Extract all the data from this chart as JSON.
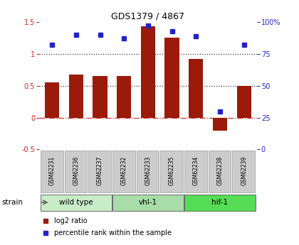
{
  "title": "GDS1379 / 4867",
  "samples": [
    "GSM62231",
    "GSM62236",
    "GSM62237",
    "GSM62232",
    "GSM62233",
    "GSM62235",
    "GSM62234",
    "GSM62238",
    "GSM62239"
  ],
  "log2_ratio": [
    0.55,
    0.68,
    0.65,
    0.65,
    1.43,
    1.25,
    0.92,
    -0.2,
    0.5
  ],
  "percentile_rank": [
    82,
    90,
    90,
    87,
    97,
    93,
    89,
    30,
    82
  ],
  "groups": [
    {
      "label": "wild type",
      "indices": [
        0,
        1,
        2
      ],
      "color": "#c8ecc8"
    },
    {
      "label": "vhl-1",
      "indices": [
        3,
        4,
        5
      ],
      "color": "#a8dca8"
    },
    {
      "label": "hif-1",
      "indices": [
        6,
        7,
        8
      ],
      "color": "#55dd55"
    }
  ],
  "bar_color": "#9b1a0a",
  "dot_color": "#2222cc",
  "ylim_left": [
    -0.5,
    1.5
  ],
  "ylim_right": [
    0,
    100
  ],
  "zero_line_color": "#cc3333",
  "dotted_line_color": "#333333",
  "background_color": "#ffffff",
  "axis_left_color": "#cc2222",
  "axis_right_color": "#2222cc",
  "strain_label": "strain",
  "legend_log2": "log2 ratio",
  "legend_pct": "percentile rank within the sample",
  "sample_box_color": "#cccccc",
  "sample_box_edge": "#999999"
}
